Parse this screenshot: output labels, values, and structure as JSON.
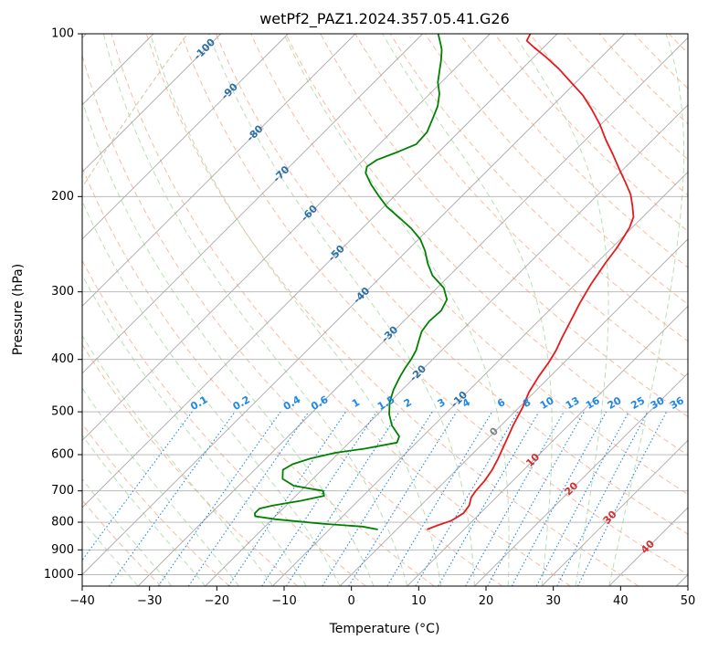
{
  "chart_data": {
    "type": "line",
    "title": "wetPf2_PAZ1.2024.357.05.41.G26",
    "xlabel": "Temperature (°C)",
    "ylabel": "Pressure (hPa)",
    "xlim": [
      -40,
      50
    ],
    "ylim": [
      1050,
      100
    ],
    "y_scale": "log",
    "grid": true,
    "x_ticks": [
      -40,
      -30,
      -20,
      -10,
      0,
      10,
      20,
      30,
      40,
      50
    ],
    "y_ticks": [
      1000,
      900,
      800,
      700,
      600,
      500,
      400,
      300,
      200,
      100
    ],
    "skew": 35,
    "series": [
      {
        "color": "#e41a1c",
        "points": [
          [
            4.5,
            825
          ],
          [
            5.5,
            810
          ],
          [
            6.8,
            795
          ],
          [
            7.5,
            770
          ],
          [
            7.2,
            745
          ],
          [
            6.3,
            720
          ],
          [
            6.0,
            700
          ],
          [
            5.8,
            670
          ],
          [
            5.3,
            640
          ],
          [
            4.5,
            610
          ],
          [
            3.2,
            570
          ],
          [
            1.8,
            530
          ],
          [
            0.5,
            490
          ],
          [
            -0.8,
            460
          ],
          [
            -1.7,
            430
          ],
          [
            -2.3,
            405
          ],
          [
            -3.0,
            385
          ],
          [
            -4.0,
            365
          ],
          [
            -5.2,
            340
          ],
          [
            -6.5,
            315
          ],
          [
            -7.7,
            290
          ],
          [
            -8.7,
            265
          ],
          [
            -9.2,
            250
          ],
          [
            -9.7,
            240
          ],
          [
            -10.4,
            228
          ],
          [
            -11.4,
            218
          ],
          [
            -13.2,
            208
          ],
          [
            -15.2,
            198
          ],
          [
            -17.8,
            188
          ],
          [
            -20.6,
            178
          ],
          [
            -23.8,
            167
          ],
          [
            -27.0,
            157
          ],
          [
            -30.2,
            147
          ],
          [
            -33.6,
            138
          ],
          [
            -37.0,
            130
          ],
          [
            -40.7,
            123
          ],
          [
            -44.6,
            116
          ],
          [
            -48.5,
            110
          ],
          [
            -51.4,
            106
          ],
          [
            -53.5,
            103
          ],
          [
            -54.0,
            100
          ]
        ]
      },
      {
        "color": "#008000",
        "points": [
          [
            -2.8,
            825
          ],
          [
            -5.5,
            815
          ],
          [
            -12.0,
            805
          ],
          [
            -19.5,
            790
          ],
          [
            -23.0,
            780
          ],
          [
            -23.5,
            770
          ],
          [
            -23.5,
            755
          ],
          [
            -22.0,
            745
          ],
          [
            -18.5,
            730
          ],
          [
            -15.8,
            715
          ],
          [
            -16.7,
            700
          ],
          [
            -21.8,
            685
          ],
          [
            -24.5,
            665
          ],
          [
            -25.8,
            640
          ],
          [
            -25.2,
            625
          ],
          [
            -23.4,
            610
          ],
          [
            -20.5,
            595
          ],
          [
            -16.8,
            585
          ],
          [
            -12.9,
            570
          ],
          [
            -13.5,
            555
          ],
          [
            -16.2,
            530
          ],
          [
            -18.3,
            505
          ],
          [
            -20.0,
            480
          ],
          [
            -21.3,
            455
          ],
          [
            -22.3,
            430
          ],
          [
            -22.8,
            415
          ],
          [
            -23.2,
            400
          ],
          [
            -23.8,
            385
          ],
          [
            -24.8,
            370
          ],
          [
            -25.8,
            355
          ],
          [
            -26.2,
            340
          ],
          [
            -26.0,
            325
          ],
          [
            -26.8,
            310
          ],
          [
            -29.0,
            295
          ],
          [
            -32.5,
            280
          ],
          [
            -35.0,
            266
          ],
          [
            -37.3,
            252
          ],
          [
            -39.7,
            240
          ],
          [
            -42.7,
            229
          ],
          [
            -46.0,
            219
          ],
          [
            -49.5,
            209
          ],
          [
            -52.5,
            199
          ],
          [
            -55.2,
            190
          ],
          [
            -57.7,
            181
          ],
          [
            -58.5,
            176
          ],
          [
            -58.0,
            171
          ],
          [
            -56.3,
            166
          ],
          [
            -54.5,
            160
          ],
          [
            -54.7,
            152
          ],
          [
            -55.8,
            144
          ],
          [
            -57.0,
            136
          ],
          [
            -58.6,
            129
          ],
          [
            -60.5,
            123
          ],
          [
            -62.0,
            117
          ],
          [
            -63.3,
            112
          ],
          [
            -64.8,
            107
          ],
          [
            -66.0,
            104
          ],
          [
            -67.7,
            100
          ]
        ]
      }
    ],
    "annotations": {
      "isotherm_labels": [
        {
          "text": "-100",
          "t": -100,
          "p": 107
        },
        {
          "text": "-90",
          "t": -90,
          "p": 128
        },
        {
          "text": "-80",
          "t": -80,
          "p": 153
        },
        {
          "text": "-70",
          "t": -70,
          "p": 182
        },
        {
          "text": "-60",
          "t": -60,
          "p": 215
        },
        {
          "text": "-50",
          "t": -50,
          "p": 255
        },
        {
          "text": "-40",
          "t": -40,
          "p": 305
        },
        {
          "text": "-30",
          "t": -30,
          "p": 360
        },
        {
          "text": "-20",
          "t": -20,
          "p": 425
        },
        {
          "text": "-10",
          "t": -10,
          "p": 475
        },
        {
          "text": "0",
          "t": 0,
          "p": 545
        },
        {
          "text": "10",
          "t": 10,
          "p": 615
        },
        {
          "text": "20",
          "t": 20,
          "p": 695
        },
        {
          "text": "30",
          "t": 30,
          "p": 785
        },
        {
          "text": "40",
          "t": 40,
          "p": 890
        }
      ],
      "mixing_ratio_labels": [
        {
          "text": "0.1",
          "x": -22.6
        },
        {
          "text": "0.2",
          "x": -16.3
        },
        {
          "text": "0.4",
          "x": -8.8
        },
        {
          "text": "0.6",
          "x": -4.7
        },
        {
          "text": "1",
          "x": 0.7
        },
        {
          "text": "1.5",
          "x": 5.2
        },
        {
          "text": "2",
          "x": 8.4
        },
        {
          "text": "3",
          "x": 13.4
        },
        {
          "text": "4",
          "x": 17.1
        },
        {
          "text": "6",
          "x": 22.3
        },
        {
          "text": "8",
          "x": 26.1
        },
        {
          "text": "10",
          "x": 29.1
        },
        {
          "text": "13",
          "x": 32.9
        },
        {
          "text": "16",
          "x": 35.9
        },
        {
          "text": "20",
          "x": 39.1
        },
        {
          "text": "25",
          "x": 42.6
        },
        {
          "text": "30",
          "x": 45.5
        },
        {
          "text": "36",
          "x": 48.4
        }
      ]
    },
    "colors": {
      "isotherm": "#a9a9a9",
      "dry_adiabat": "#f4a582",
      "moist_adiabat": "#a6d8a0",
      "mixing_ratio": "#1e88e5",
      "isotherm_label_cold": "#2b6fa8",
      "isotherm_label_warm": "#d32f2f",
      "isotherm_label_zero": "#808080",
      "curved": "#d8c4a4"
    }
  }
}
